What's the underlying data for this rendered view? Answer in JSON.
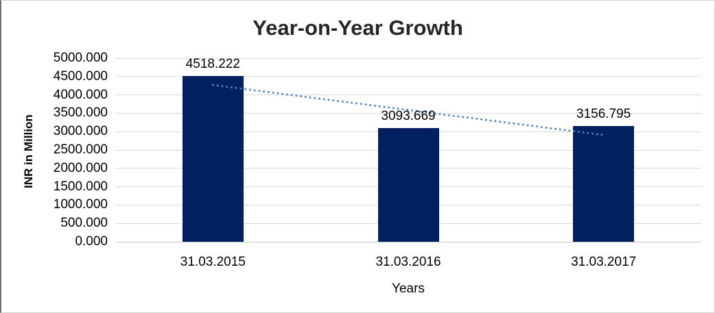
{
  "chart_data": {
    "type": "bar",
    "title": "Year-on-Year Growth",
    "xlabel": "Years",
    "ylabel": "INR in Million",
    "categories": [
      "31.03.2015",
      "31.03.2016",
      "31.03.2017"
    ],
    "values": [
      4518.222,
      3093.669,
      3156.795
    ],
    "data_labels": [
      "4518.222",
      "3093.669",
      "3156.795"
    ],
    "series": [
      {
        "name": "INR in Million",
        "type": "bar",
        "values": [
          4518.222,
          3093.669,
          3156.795
        ],
        "color": "#002060"
      },
      {
        "name": "linear-trendline",
        "type": "dotted-line",
        "values": [
          4270.3,
          3589.6,
          2908.9
        ],
        "color": "#4E86C4"
      }
    ],
    "ylim": [
      0,
      5000
    ],
    "ytick_step": 500,
    "ytick_labels": [
      "0.000",
      "500.000",
      "1000.000",
      "1500.000",
      "2000.000",
      "2500.000",
      "3000.000",
      "3500.000",
      "4000.000",
      "4500.000",
      "5000.000"
    ],
    "grid": true,
    "legend": "none",
    "colors": {
      "bar": "#002060",
      "trendline": "#4E86C4",
      "gridline": "#D9D9D9",
      "title_text": "#262626",
      "label_text": "#000000"
    }
  }
}
